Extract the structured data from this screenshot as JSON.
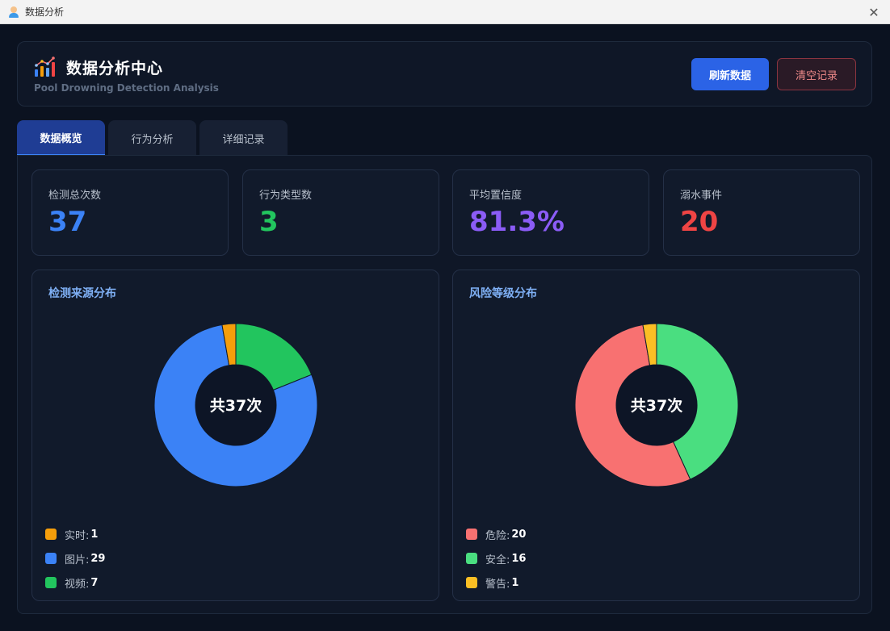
{
  "window": {
    "title": "数据分析"
  },
  "header": {
    "title": "数据分析中心",
    "subtitle": "Pool Drowning Detection Analysis",
    "refresh_label": "刷新数据",
    "clear_label": "清空记录"
  },
  "tabs": [
    {
      "label": "数据概览",
      "active": true
    },
    {
      "label": "行为分析",
      "active": false
    },
    {
      "label": "详细记录",
      "active": false
    }
  ],
  "stats": [
    {
      "label": "检测总次数",
      "value": "37",
      "color": "#3b82f6"
    },
    {
      "label": "行为类型数",
      "value": "3",
      "color": "#22c55e"
    },
    {
      "label": "平均置信度",
      "value": "81.3%",
      "color": "#8b5cf6"
    },
    {
      "label": "溺水事件",
      "value": "20",
      "color": "#ef4444"
    }
  ],
  "charts": [
    {
      "title": "检测来源分布",
      "center_text": "共37次",
      "legend": [
        {
          "label": "实时:",
          "value": "1",
          "color": "#f59e0b"
        },
        {
          "label": "图片:",
          "value": "29",
          "color": "#3b82f6"
        },
        {
          "label": "视频:",
          "value": "7",
          "color": "#22c55e"
        }
      ]
    },
    {
      "title": "风险等级分布",
      "center_text": "共37次",
      "legend": [
        {
          "label": "危险:",
          "value": "20",
          "color": "#f87171"
        },
        {
          "label": "安全:",
          "value": "16",
          "color": "#4ade80"
        },
        {
          "label": "警告:",
          "value": "1",
          "color": "#fbbf24"
        }
      ]
    }
  ],
  "chart_data": [
    {
      "type": "pie",
      "title": "检测来源分布",
      "categories": [
        "视频",
        "图片",
        "实时"
      ],
      "values": [
        7,
        29,
        1
      ],
      "colors": [
        "#22c55e",
        "#3b82f6",
        "#f59e0b"
      ]
    },
    {
      "type": "pie",
      "title": "风险等级分布",
      "categories": [
        "安全",
        "危险",
        "警告"
      ],
      "values": [
        16,
        20,
        1
      ],
      "colors": [
        "#4ade80",
        "#f87171",
        "#fbbf24"
      ]
    }
  ]
}
